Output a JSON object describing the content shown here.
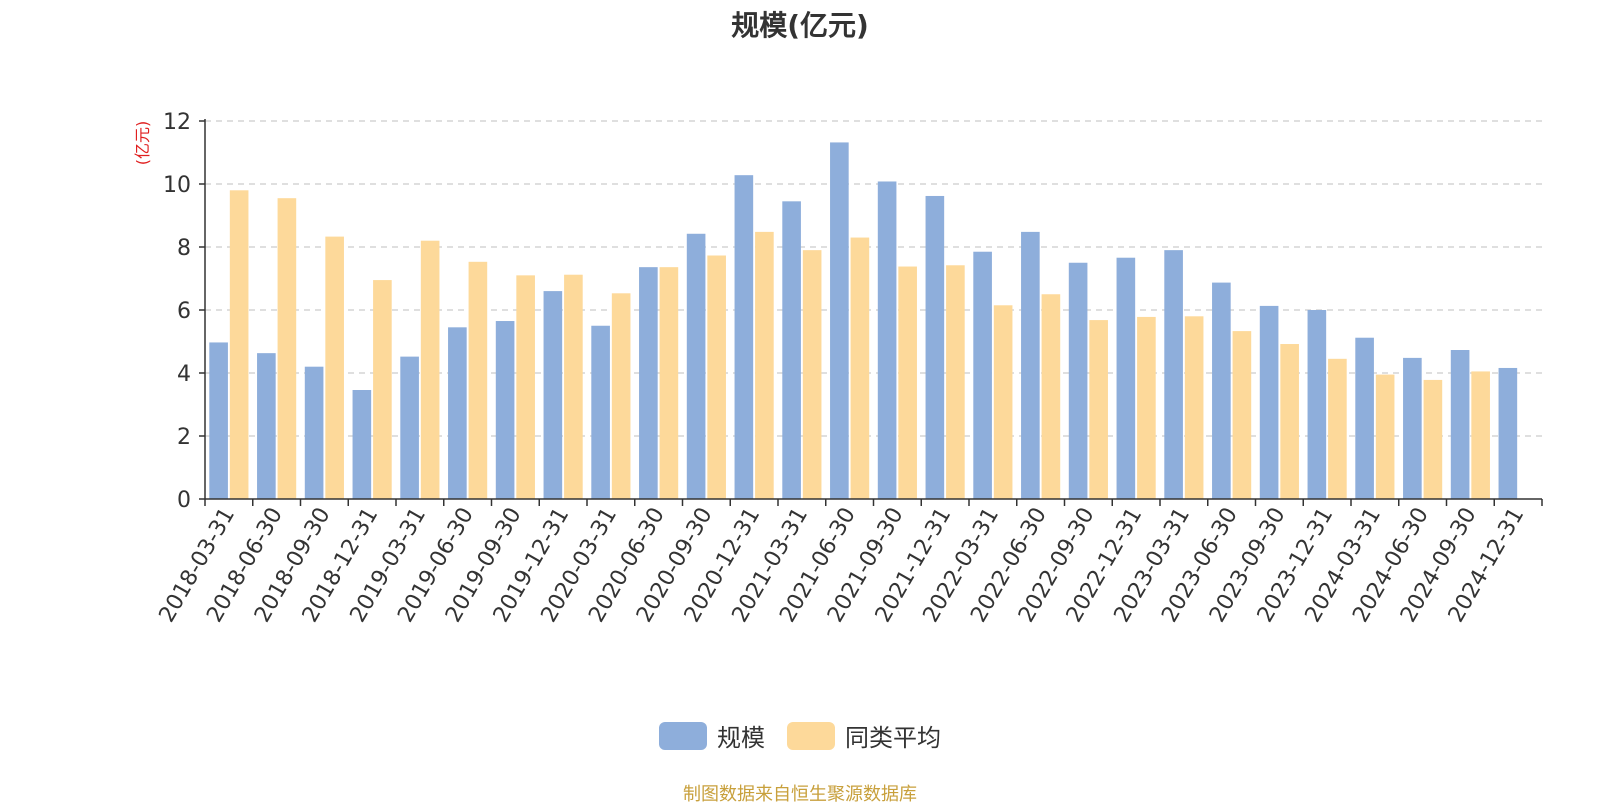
{
  "chart_data": {
    "type": "bar",
    "title": "规模(亿元)",
    "ylabel": "(亿元)",
    "ylim": [
      0,
      12
    ],
    "yticks": [
      0,
      2,
      4,
      6,
      8,
      10,
      12
    ],
    "grid": true,
    "legend_position": "bottom-center",
    "categories": [
      "2018-03-31",
      "2018-06-30",
      "2018-09-30",
      "2018-12-31",
      "2019-03-31",
      "2019-06-30",
      "2019-09-30",
      "2019-12-31",
      "2020-03-31",
      "2020-06-30",
      "2020-09-30",
      "2020-12-31",
      "2021-03-31",
      "2021-06-30",
      "2021-09-30",
      "2021-12-31",
      "2022-03-31",
      "2022-06-30",
      "2022-09-30",
      "2022-12-31",
      "2023-03-31",
      "2023-06-30",
      "2023-09-30",
      "2023-12-31",
      "2024-03-31",
      "2024-06-30",
      "2024-09-30",
      "2024-12-31"
    ],
    "series": [
      {
        "name": "规模",
        "color": "#8eaedb",
        "values": [
          4.97,
          4.63,
          4.2,
          3.46,
          4.52,
          5.45,
          5.65,
          6.6,
          5.5,
          7.36,
          8.42,
          10.28,
          9.45,
          11.32,
          10.08,
          9.62,
          7.85,
          8.48,
          7.5,
          7.66,
          7.9,
          6.87,
          6.13,
          6.0,
          5.12,
          4.48,
          4.73,
          4.16
        ]
      },
      {
        "name": "同类平均",
        "color": "#fdd99a",
        "values": [
          9.8,
          9.55,
          8.33,
          6.95,
          8.2,
          7.53,
          7.1,
          7.12,
          6.53,
          7.36,
          7.73,
          8.48,
          7.9,
          8.3,
          7.38,
          7.42,
          6.15,
          6.5,
          5.68,
          5.78,
          5.8,
          5.33,
          4.92,
          4.45,
          3.95,
          3.78,
          4.05,
          null
        ]
      }
    ]
  },
  "footer": {
    "source": "制图数据来自恒生聚源数据库"
  }
}
